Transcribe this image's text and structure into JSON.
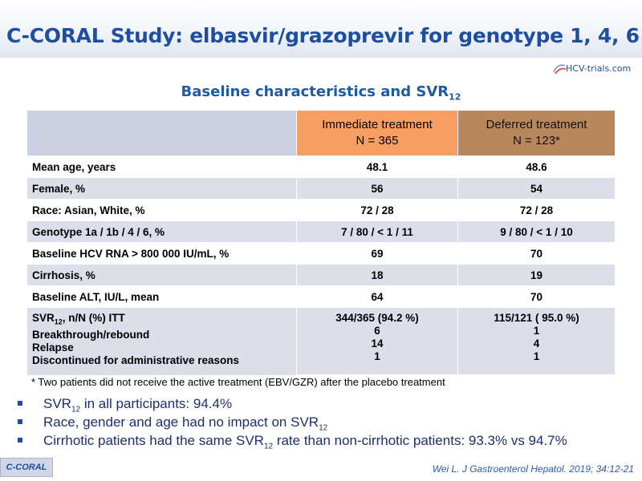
{
  "header": {
    "title": "C-CORAL Study: elbasvir/grazoprevir for genotype 1, 4, 6",
    "logo_text": "HCV-trials.com"
  },
  "subtitle": {
    "text": "Baseline characteristics and SVR",
    "sub": "12"
  },
  "table": {
    "columns": [
      {
        "line1": "Immediate treatment",
        "line2": "N = 365"
      },
      {
        "line1": "Deferred treatment",
        "line2": "N = 123*"
      }
    ],
    "rows": [
      {
        "label": "Mean age, years",
        "immediate": "48.1",
        "deferred": "48.6"
      },
      {
        "label": "Female, %",
        "immediate": "56",
        "deferred": "54"
      },
      {
        "label": "Race: Asian, White, %",
        "immediate": "72 / 28",
        "deferred": "72 / 28"
      },
      {
        "label": "Genotype 1a / 1b / 4 / 6, %",
        "immediate": "7 / 80 / < 1 / 11",
        "deferred": "9 / 80 / < 1 / 10"
      },
      {
        "label": "Baseline HCV RNA > 800 000 IU/mL, %",
        "immediate": "69",
        "deferred": "70"
      },
      {
        "label": "Cirrhosis, %",
        "immediate": "18",
        "deferred": "19"
      },
      {
        "label": "Baseline ALT, IU/L, mean",
        "immediate": "64",
        "deferred": "70"
      }
    ],
    "svr_row": {
      "label_pre": "SVR",
      "label_sub": "12",
      "label_post": ", n/N (%) ITT",
      "immediate": "344/365 (94.2 %)",
      "deferred": "115/121 ( 95.0 %)"
    },
    "sub_rows": [
      {
        "label": "Breakthrough/rebound",
        "immediate": "6",
        "deferred": "1"
      },
      {
        "label": "Relapse",
        "immediate": "14",
        "deferred": "4"
      },
      {
        "label": "Discontinued for administrative reasons",
        "immediate": "1",
        "deferred": "1"
      }
    ]
  },
  "footnote": "* Two patients did not receive the active treatment (EBV/GZR) after the placebo treatment",
  "bullets": [
    {
      "pre": "SVR",
      "sub": "12",
      "post": " in all participants: 94.4%"
    },
    {
      "pre": "Race, gender and age had no impact on SVR",
      "sub": "12",
      "post": ""
    },
    {
      "pre": "Cirrhotic patients had the same SVR",
      "sub": "12",
      "post": " rate than non-cirrhotic patients: 93.3% vs 94.7%"
    }
  ],
  "badge": "C-CORAL",
  "citation": "Wei L. J Gastroenterol Hepatol. 2019; 34:12-21",
  "colors": {
    "title": "#1f4e9e",
    "immediate_header": "#f79f63",
    "deferred_header": "#b9875c",
    "row_alt": "#dcdfe9"
  }
}
